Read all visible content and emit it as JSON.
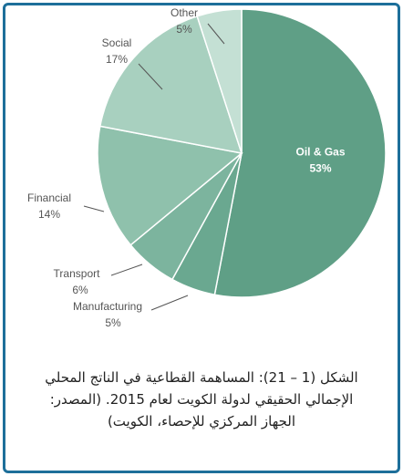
{
  "chart_data": {
    "type": "pie",
    "categories": [
      "Oil & Gas",
      "Manufacturing",
      "Transport",
      "Financial",
      "Social",
      "Other"
    ],
    "values": [
      53,
      5,
      6,
      14,
      17,
      5
    ],
    "value_labels": [
      "53%",
      "5%",
      "6%",
      "14%",
      "17%",
      "5%"
    ],
    "colors": [
      "#5f9f86",
      "#6aa890",
      "#7cb49e",
      "#8fc1ac",
      "#a8d0bf",
      "#c4e0d4"
    ]
  },
  "caption": [
    "الشكل (1 – 21): المساهمة القطاعية في الناتج المحلي",
    "الإجمالي الحقيقي لدولة الكويت لعام 2015. (المصدر:",
    "الجهاز المركزي للإحصاء، الكويت)"
  ]
}
